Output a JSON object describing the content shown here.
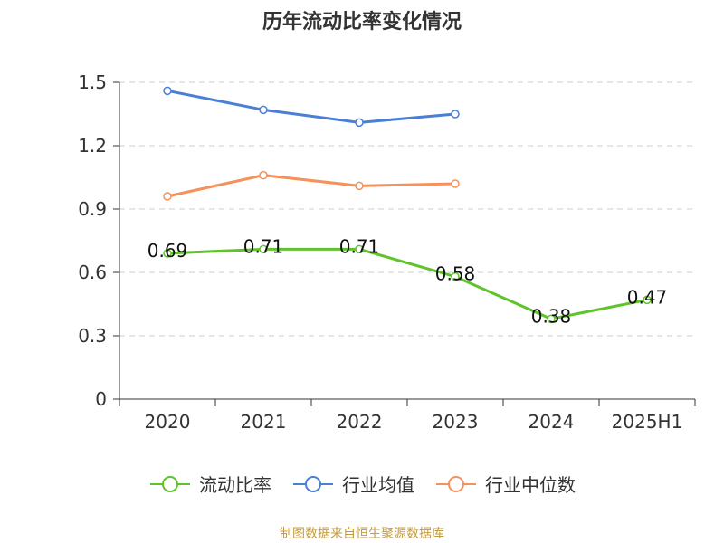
{
  "chart_data": {
    "type": "line",
    "title": "历年流动比率变化情况",
    "categories": [
      "2020",
      "2021",
      "2022",
      "2023",
      "2024",
      "2025H1"
    ],
    "ylim": [
      0,
      1.5
    ],
    "yticks": [
      "0",
      "0.3",
      "0.6",
      "0.9",
      "1.2",
      "1.5"
    ],
    "grid": true,
    "legend_position": "bottom",
    "series": [
      {
        "name": "流动比率",
        "color": "#5ec429",
        "values": [
          0.69,
          0.71,
          0.71,
          0.58,
          0.38,
          0.47
        ],
        "labels": [
          "0.69",
          "0.71",
          "0.71",
          "0.58",
          "0.38",
          "0.47"
        ]
      },
      {
        "name": "行业均值",
        "color": "#4a7fd8",
        "values": [
          1.46,
          1.37,
          1.31,
          1.35,
          null,
          null
        ]
      },
      {
        "name": "行业中位数",
        "color": "#f5915a",
        "values": [
          0.96,
          1.06,
          1.01,
          1.02,
          null,
          null
        ]
      }
    ]
  },
  "source": {
    "text": "制图数据来自恒生聚源数据库",
    "color": "#c49a3c"
  }
}
